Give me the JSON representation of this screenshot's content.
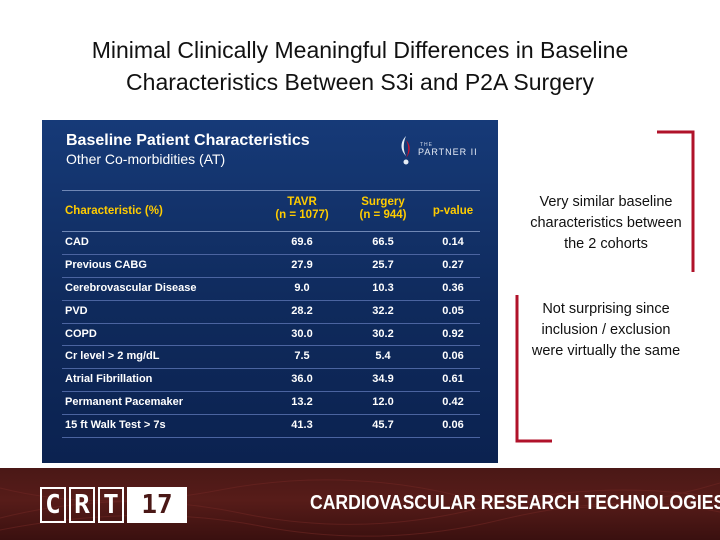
{
  "slide": {
    "title_line1": "Minimal Clinically Meaningful Differences in Baseline",
    "title_line2": "Characteristics Between S3i and P2A Surgery"
  },
  "panel": {
    "title": "Baseline Patient Characteristics",
    "subtitle": "Other Co-morbidities (AT)",
    "logo_small": "THE",
    "logo_main": "PARTNER II",
    "headers": {
      "characteristic": "Characteristic (%)",
      "tavr_line1": "TAVR",
      "tavr_line2": "(n = 1077)",
      "surgery_line1": "Surgery",
      "surgery_line2": "(n = 944)",
      "pvalue": "p-value"
    },
    "rows": [
      {
        "name": "CAD",
        "tavr": "69.6",
        "surgery": "66.5",
        "p": "0.14"
      },
      {
        "name": "Previous CABG",
        "tavr": "27.9",
        "surgery": "25.7",
        "p": "0.27"
      },
      {
        "name": "Cerebrovascular Disease",
        "tavr": "9.0",
        "surgery": "10.3",
        "p": "0.36"
      },
      {
        "name": "PVD",
        "tavr": "28.2",
        "surgery": "32.2",
        "p": "0.05"
      },
      {
        "name": "COPD",
        "tavr": "30.0",
        "surgery": "30.2",
        "p": "0.92"
      },
      {
        "name": "Cr level > 2 mg/dL",
        "tavr": "7.5",
        "surgery": "5.4",
        "p": "0.06"
      },
      {
        "name": "Atrial Fibrillation",
        "tavr": "36.0",
        "surgery": "34.9",
        "p": "0.61"
      },
      {
        "name": "Permanent Pacemaker",
        "tavr": "13.2",
        "surgery": "12.0",
        "p": "0.42"
      },
      {
        "name": "15 ft Walk Test > 7s",
        "tavr": "41.3",
        "surgery": "45.7",
        "p": "0.06"
      }
    ]
  },
  "notes": {
    "note1": "Very similar baseline characteristics between the 2 cohorts",
    "note2": "Not surprising since inclusion / exclusion were virtually the same"
  },
  "footer": {
    "logo_letters": [
      "C",
      "R",
      "T"
    ],
    "logo_year": "17",
    "text": "CARDIOVASCULAR RESEARCH TECHNOLOGIES"
  },
  "colors": {
    "panel_bg": "#163a78",
    "header_yellow": "#ffcc00",
    "bracket_red": "#b0122a",
    "footer_maroon": "#4a1816"
  }
}
